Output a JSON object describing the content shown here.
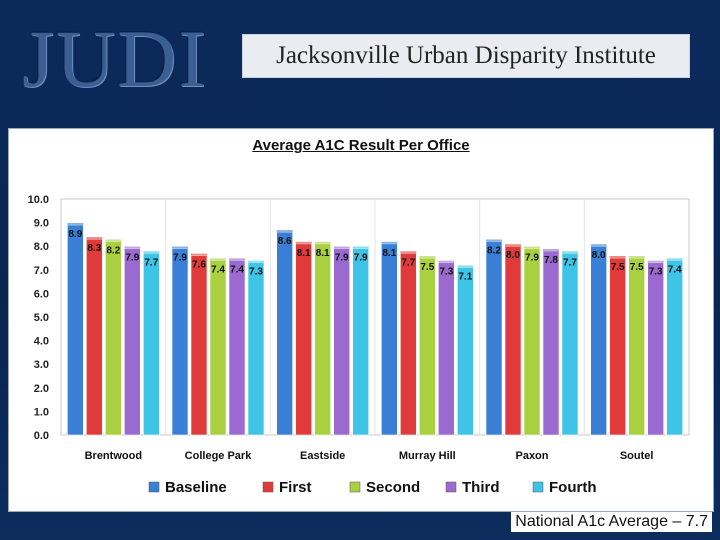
{
  "header": {
    "logo_text": "JUDI",
    "banner_title": "Jacksonville Urban Disparity Institute"
  },
  "footnote": "National A1c Average – 7.7",
  "colors": {
    "Baseline": "#3a7fd6",
    "First": "#e03a3a",
    "Second": "#a8d040",
    "Third": "#9a6ad0",
    "Fourth": "#3ec4e6"
  },
  "chart_data": {
    "type": "bar",
    "title": "Average A1C Result Per Office",
    "categories": [
      "Brentwood",
      "College Park",
      "Eastside",
      "Murray Hill",
      "Paxon",
      "Soutel"
    ],
    "series": [
      {
        "name": "Baseline",
        "values": [
          8.9,
          7.9,
          8.6,
          8.1,
          8.2,
          8.0
        ]
      },
      {
        "name": "First",
        "values": [
          8.3,
          7.6,
          8.1,
          7.7,
          8.0,
          7.5
        ]
      },
      {
        "name": "Second",
        "values": [
          8.2,
          7.4,
          8.1,
          7.5,
          7.9,
          7.5
        ]
      },
      {
        "name": "Third",
        "values": [
          7.9,
          7.4,
          7.9,
          7.3,
          7.8,
          7.3
        ]
      },
      {
        "name": "Fourth",
        "values": [
          7.7,
          7.3,
          7.9,
          7.1,
          7.7,
          7.4
        ]
      }
    ],
    "data_labels": [
      [
        "8.9",
        "8.3",
        "8.2",
        "7.9",
        "7.7"
      ],
      [
        "7.9",
        "7.6",
        "7.4",
        "7.4",
        "7.3"
      ],
      [
        "8.6",
        "8.1",
        "8.1",
        "7.9",
        "7.9"
      ],
      [
        "8.1",
        "7.7",
        "7.5",
        "7.3",
        "7.1"
      ],
      [
        "8.2",
        "8.0",
        "7.9",
        "7.8",
        "7.7"
      ],
      [
        "8.0",
        "7.5",
        "7.5",
        "7.3",
        "7.4"
      ]
    ],
    "ylim": [
      0,
      10
    ],
    "yticks": [
      "0.0",
      "1.0",
      "2.0",
      "3.0",
      "4.0",
      "5.0",
      "6.0",
      "7.0",
      "8.0",
      "9.0",
      "10.0"
    ],
    "xlabel": "",
    "ylabel": "",
    "legend": [
      "Baseline",
      "First",
      "Second",
      "Third",
      "Fourth"
    ],
    "legend_position": "bottom"
  }
}
